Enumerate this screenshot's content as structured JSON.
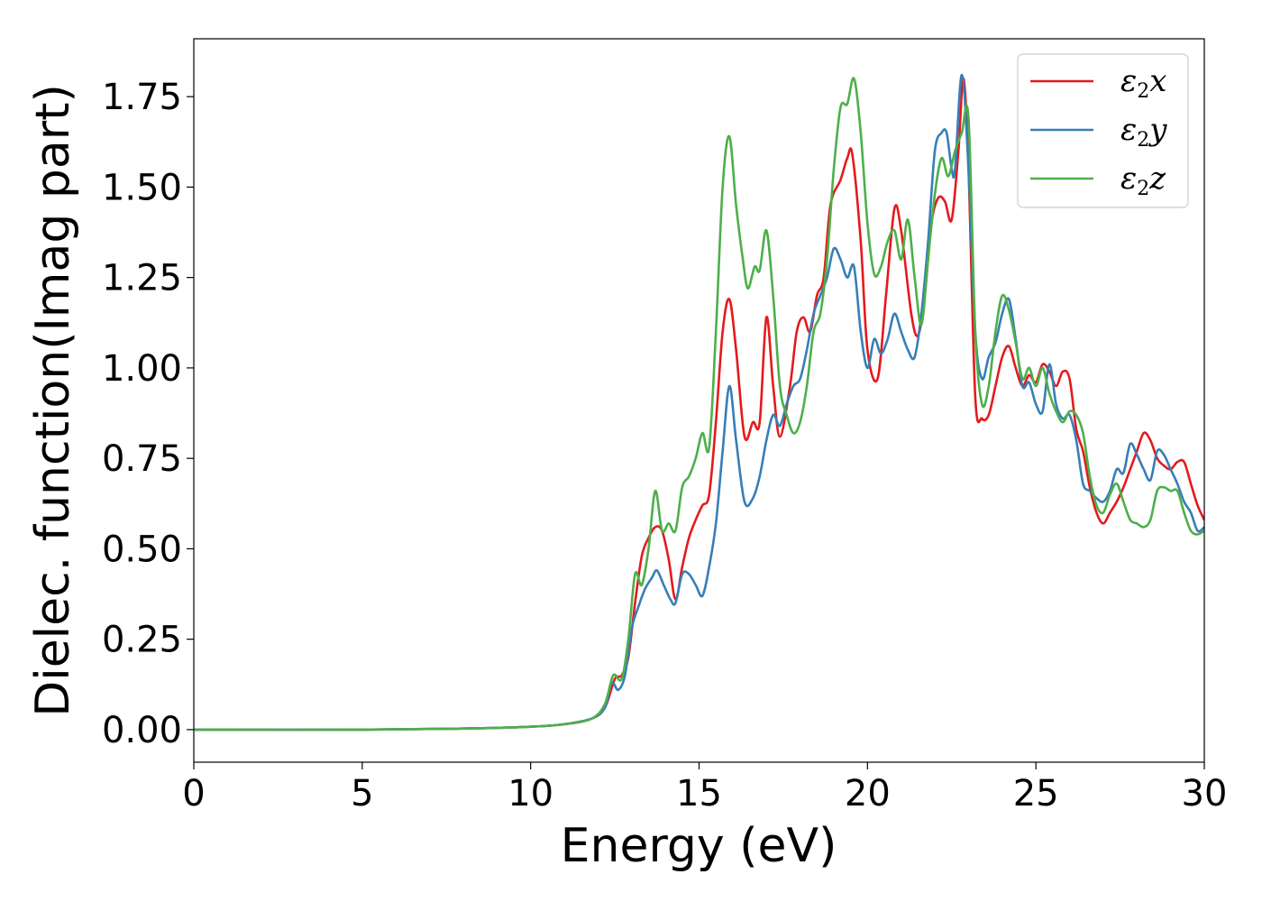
{
  "chart_data": {
    "type": "line",
    "title": "",
    "xlabel": "Energy (eV)",
    "ylabel": "Dielec. function(Imag part)",
    "xlim": [
      0,
      30
    ],
    "ylim": [
      -0.09,
      1.91
    ],
    "xticks": [
      0,
      5,
      10,
      15,
      20,
      25,
      30
    ],
    "xtick_labels": [
      "0",
      "5",
      "10",
      "15",
      "20",
      "25",
      "30"
    ],
    "yticks": [
      0,
      0.25,
      0.5,
      0.75,
      1.0,
      1.25,
      1.5,
      1.75
    ],
    "ytick_labels": [
      "0.00",
      "0.25",
      "0.50",
      "0.75",
      "1.00",
      "1.25",
      "1.50",
      "1.75"
    ],
    "grid": false,
    "legend_position": "top-right",
    "series": [
      {
        "name": "ε2x",
        "legend": {
          "base": "ε",
          "sub": "2",
          "axis": "x"
        },
        "color": "#e41a1c",
        "points": [
          [
            0,
            0
          ],
          [
            5,
            0
          ],
          [
            8,
            0.003
          ],
          [
            10,
            0.008
          ],
          [
            11,
            0.015
          ],
          [
            11.8,
            0.03
          ],
          [
            12.2,
            0.06
          ],
          [
            12.5,
            0.14
          ],
          [
            12.7,
            0.15
          ],
          [
            12.9,
            0.2
          ],
          [
            13.1,
            0.35
          ],
          [
            13.3,
            0.48
          ],
          [
            13.5,
            0.53
          ],
          [
            13.7,
            0.56
          ],
          [
            13.9,
            0.55
          ],
          [
            14.1,
            0.47
          ],
          [
            14.3,
            0.36
          ],
          [
            14.5,
            0.45
          ],
          [
            14.7,
            0.53
          ],
          [
            14.9,
            0.58
          ],
          [
            15.1,
            0.62
          ],
          [
            15.3,
            0.65
          ],
          [
            15.5,
            0.85
          ],
          [
            15.7,
            1.1
          ],
          [
            15.9,
            1.19
          ],
          [
            16.1,
            1.05
          ],
          [
            16.35,
            0.81
          ],
          [
            16.6,
            0.85
          ],
          [
            16.8,
            0.85
          ],
          [
            17.0,
            1.14
          ],
          [
            17.2,
            0.95
          ],
          [
            17.4,
            0.81
          ],
          [
            17.7,
            0.95
          ],
          [
            17.9,
            1.1
          ],
          [
            18.1,
            1.14
          ],
          [
            18.3,
            1.1
          ],
          [
            18.5,
            1.2
          ],
          [
            18.7,
            1.25
          ],
          [
            18.9,
            1.45
          ],
          [
            19.2,
            1.52
          ],
          [
            19.4,
            1.58
          ],
          [
            19.55,
            1.59
          ],
          [
            19.8,
            1.35
          ],
          [
            20.0,
            1.05
          ],
          [
            20.3,
            0.97
          ],
          [
            20.55,
            1.2
          ],
          [
            20.8,
            1.44
          ],
          [
            21.0,
            1.38
          ],
          [
            21.3,
            1.15
          ],
          [
            21.5,
            1.09
          ],
          [
            21.7,
            1.2
          ],
          [
            21.9,
            1.4
          ],
          [
            22.1,
            1.47
          ],
          [
            22.3,
            1.46
          ],
          [
            22.5,
            1.41
          ],
          [
            22.7,
            1.6
          ],
          [
            22.85,
            1.8
          ],
          [
            23.0,
            1.55
          ],
          [
            23.2,
            0.92
          ],
          [
            23.4,
            0.86
          ],
          [
            23.6,
            0.87
          ],
          [
            23.8,
            0.95
          ],
          [
            24.0,
            1.03
          ],
          [
            24.2,
            1.06
          ],
          [
            24.4,
            1.0
          ],
          [
            24.6,
            0.95
          ],
          [
            24.8,
            0.98
          ],
          [
            25.0,
            0.96
          ],
          [
            25.2,
            1.01
          ],
          [
            25.4,
            0.99
          ],
          [
            25.6,
            0.95
          ],
          [
            25.8,
            0.99
          ],
          [
            26.0,
            0.97
          ],
          [
            26.2,
            0.83
          ],
          [
            26.4,
            0.77
          ],
          [
            26.6,
            0.67
          ],
          [
            26.8,
            0.6
          ],
          [
            27.0,
            0.57
          ],
          [
            27.2,
            0.6
          ],
          [
            27.4,
            0.63
          ],
          [
            27.6,
            0.67
          ],
          [
            27.8,
            0.72
          ],
          [
            28.0,
            0.77
          ],
          [
            28.2,
            0.82
          ],
          [
            28.4,
            0.8
          ],
          [
            28.6,
            0.75
          ],
          [
            28.8,
            0.73
          ],
          [
            29.0,
            0.72
          ],
          [
            29.2,
            0.74
          ],
          [
            29.4,
            0.74
          ],
          [
            29.6,
            0.68
          ],
          [
            29.8,
            0.62
          ],
          [
            30,
            0.58
          ]
        ]
      },
      {
        "name": "ε2y",
        "legend": {
          "base": "ε",
          "sub": "2",
          "axis": "y"
        },
        "color": "#377eb8",
        "points": [
          [
            0,
            0
          ],
          [
            5,
            0
          ],
          [
            8,
            0.003
          ],
          [
            10,
            0.008
          ],
          [
            11,
            0.015
          ],
          [
            11.8,
            0.03
          ],
          [
            12.2,
            0.06
          ],
          [
            12.4,
            0.13
          ],
          [
            12.6,
            0.11
          ],
          [
            12.8,
            0.15
          ],
          [
            13.0,
            0.28
          ],
          [
            13.2,
            0.34
          ],
          [
            13.4,
            0.39
          ],
          [
            13.6,
            0.42
          ],
          [
            13.75,
            0.44
          ],
          [
            13.95,
            0.4
          ],
          [
            14.15,
            0.36
          ],
          [
            14.3,
            0.35
          ],
          [
            14.5,
            0.43
          ],
          [
            14.7,
            0.43
          ],
          [
            14.9,
            0.4
          ],
          [
            15.1,
            0.37
          ],
          [
            15.3,
            0.45
          ],
          [
            15.5,
            0.57
          ],
          [
            15.7,
            0.77
          ],
          [
            15.9,
            0.95
          ],
          [
            16.1,
            0.8
          ],
          [
            16.35,
            0.63
          ],
          [
            16.6,
            0.64
          ],
          [
            16.8,
            0.7
          ],
          [
            17.0,
            0.8
          ],
          [
            17.2,
            0.87
          ],
          [
            17.4,
            0.84
          ],
          [
            17.6,
            0.9
          ],
          [
            17.8,
            0.95
          ],
          [
            18.0,
            0.97
          ],
          [
            18.2,
            1.05
          ],
          [
            18.4,
            1.15
          ],
          [
            18.6,
            1.2
          ],
          [
            18.8,
            1.25
          ],
          [
            19.0,
            1.33
          ],
          [
            19.2,
            1.3
          ],
          [
            19.4,
            1.25
          ],
          [
            19.6,
            1.28
          ],
          [
            19.8,
            1.1
          ],
          [
            20.0,
            1.0
          ],
          [
            20.2,
            1.08
          ],
          [
            20.4,
            1.04
          ],
          [
            20.6,
            1.08
          ],
          [
            20.8,
            1.15
          ],
          [
            21.0,
            1.1
          ],
          [
            21.2,
            1.05
          ],
          [
            21.4,
            1.03
          ],
          [
            21.6,
            1.15
          ],
          [
            21.8,
            1.35
          ],
          [
            22.0,
            1.6
          ],
          [
            22.2,
            1.65
          ],
          [
            22.35,
            1.65
          ],
          [
            22.5,
            1.55
          ],
          [
            22.6,
            1.55
          ],
          [
            22.8,
            1.81
          ],
          [
            23.0,
            1.55
          ],
          [
            23.2,
            1.1
          ],
          [
            23.4,
            0.97
          ],
          [
            23.6,
            1.03
          ],
          [
            23.8,
            1.07
          ],
          [
            24.0,
            1.15
          ],
          [
            24.2,
            1.19
          ],
          [
            24.4,
            1.08
          ],
          [
            24.6,
            0.95
          ],
          [
            24.8,
            0.96
          ],
          [
            25.0,
            0.9
          ],
          [
            25.2,
            0.88
          ],
          [
            25.4,
            1.01
          ],
          [
            25.6,
            0.9
          ],
          [
            25.8,
            0.86
          ],
          [
            26.0,
            0.87
          ],
          [
            26.2,
            0.8
          ],
          [
            26.4,
            0.68
          ],
          [
            26.6,
            0.66
          ],
          [
            26.8,
            0.64
          ],
          [
            27.0,
            0.63
          ],
          [
            27.2,
            0.66
          ],
          [
            27.4,
            0.72
          ],
          [
            27.6,
            0.71
          ],
          [
            27.8,
            0.79
          ],
          [
            28.0,
            0.76
          ],
          [
            28.2,
            0.72
          ],
          [
            28.4,
            0.69
          ],
          [
            28.6,
            0.77
          ],
          [
            28.8,
            0.76
          ],
          [
            29.0,
            0.72
          ],
          [
            29.2,
            0.68
          ],
          [
            29.4,
            0.63
          ],
          [
            29.6,
            0.6
          ],
          [
            29.8,
            0.55
          ],
          [
            30,
            0.56
          ]
        ]
      },
      {
        "name": "ε2z",
        "legend": {
          "base": "ε",
          "sub": "2",
          "axis": "z"
        },
        "color": "#4daf4a",
        "points": [
          [
            0,
            0
          ],
          [
            5,
            0
          ],
          [
            8,
            0.003
          ],
          [
            10,
            0.008
          ],
          [
            11,
            0.015
          ],
          [
            11.8,
            0.03
          ],
          [
            12.2,
            0.07
          ],
          [
            12.45,
            0.15
          ],
          [
            12.7,
            0.14
          ],
          [
            12.9,
            0.25
          ],
          [
            13.1,
            0.43
          ],
          [
            13.3,
            0.4
          ],
          [
            13.5,
            0.5
          ],
          [
            13.7,
            0.66
          ],
          [
            13.9,
            0.55
          ],
          [
            14.1,
            0.57
          ],
          [
            14.3,
            0.55
          ],
          [
            14.5,
            0.67
          ],
          [
            14.7,
            0.7
          ],
          [
            14.9,
            0.75
          ],
          [
            15.1,
            0.82
          ],
          [
            15.3,
            0.78
          ],
          [
            15.5,
            1.1
          ],
          [
            15.7,
            1.5
          ],
          [
            15.9,
            1.64
          ],
          [
            16.1,
            1.45
          ],
          [
            16.3,
            1.3
          ],
          [
            16.45,
            1.22
          ],
          [
            16.65,
            1.28
          ],
          [
            16.8,
            1.27
          ],
          [
            17.0,
            1.38
          ],
          [
            17.2,
            1.2
          ],
          [
            17.4,
            0.95
          ],
          [
            17.6,
            0.87
          ],
          [
            17.8,
            0.82
          ],
          [
            18.0,
            0.85
          ],
          [
            18.2,
            0.95
          ],
          [
            18.4,
            1.1
          ],
          [
            18.6,
            1.15
          ],
          [
            18.8,
            1.3
          ],
          [
            19.0,
            1.55
          ],
          [
            19.2,
            1.72
          ],
          [
            19.4,
            1.73
          ],
          [
            19.6,
            1.8
          ],
          [
            19.8,
            1.65
          ],
          [
            20.0,
            1.4
          ],
          [
            20.2,
            1.26
          ],
          [
            20.4,
            1.28
          ],
          [
            20.6,
            1.35
          ],
          [
            20.8,
            1.38
          ],
          [
            21.0,
            1.3
          ],
          [
            21.2,
            1.41
          ],
          [
            21.4,
            1.25
          ],
          [
            21.6,
            1.12
          ],
          [
            21.8,
            1.3
          ],
          [
            22.0,
            1.48
          ],
          [
            22.2,
            1.58
          ],
          [
            22.4,
            1.53
          ],
          [
            22.6,
            1.6
          ],
          [
            22.8,
            1.65
          ],
          [
            23.0,
            1.69
          ],
          [
            23.2,
            1.1
          ],
          [
            23.4,
            0.9
          ],
          [
            23.6,
            0.95
          ],
          [
            23.8,
            1.1
          ],
          [
            24.0,
            1.2
          ],
          [
            24.2,
            1.16
          ],
          [
            24.4,
            1.07
          ],
          [
            24.6,
            0.97
          ],
          [
            24.8,
            1.0
          ],
          [
            25.0,
            0.95
          ],
          [
            25.2,
            1.0
          ],
          [
            25.4,
            0.93
          ],
          [
            25.6,
            0.88
          ],
          [
            25.8,
            0.85
          ],
          [
            26.0,
            0.88
          ],
          [
            26.2,
            0.87
          ],
          [
            26.4,
            0.82
          ],
          [
            26.6,
            0.7
          ],
          [
            26.8,
            0.62
          ],
          [
            27.0,
            0.6
          ],
          [
            27.2,
            0.65
          ],
          [
            27.4,
            0.68
          ],
          [
            27.6,
            0.63
          ],
          [
            27.8,
            0.58
          ],
          [
            28.0,
            0.57
          ],
          [
            28.2,
            0.56
          ],
          [
            28.4,
            0.58
          ],
          [
            28.6,
            0.66
          ],
          [
            28.8,
            0.67
          ],
          [
            29.0,
            0.66
          ],
          [
            29.2,
            0.66
          ],
          [
            29.4,
            0.6
          ],
          [
            29.6,
            0.55
          ],
          [
            29.8,
            0.54
          ],
          [
            30,
            0.55
          ]
        ]
      }
    ]
  }
}
